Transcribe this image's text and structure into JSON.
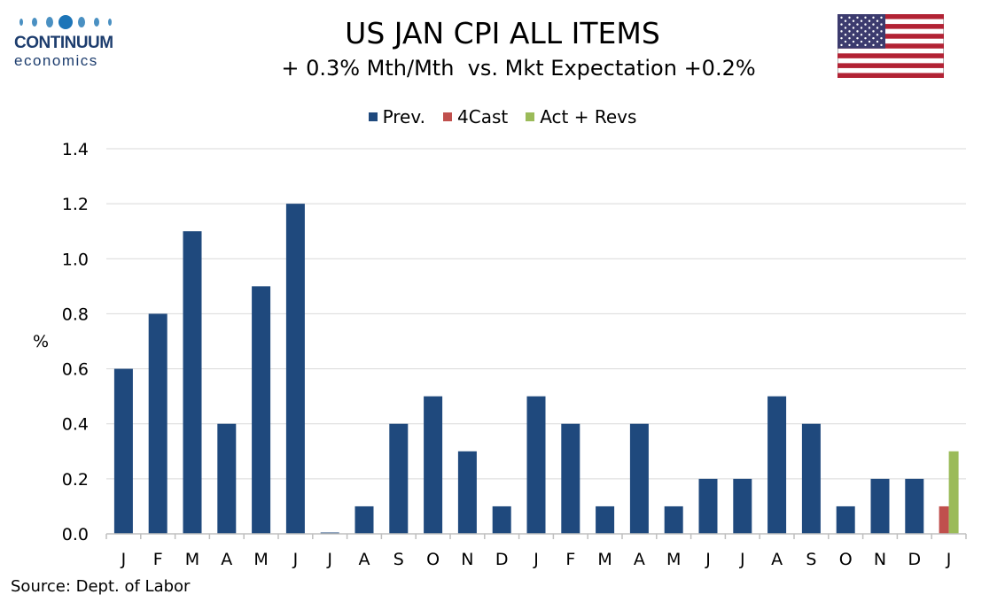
{
  "brand": {
    "name_line1": "CONTINUUM",
    "name_line2": "economics"
  },
  "header": {
    "title": "US JAN CPI ALL ITEMS",
    "subtitle": "+ 0.3% Mth/Mth  vs. Mkt Expectation +0.2%"
  },
  "flag": {
    "icon": "us-flag-icon",
    "colors": {
      "red": "#b22234",
      "white": "#ffffff",
      "blue": "#3c3b6e"
    }
  },
  "source": "Source: Dept. of Labor",
  "chart_data": {
    "type": "bar",
    "title": "US JAN CPI ALL ITEMS",
    "subtitle": "+ 0.3% Mth/Mth  vs. Mkt Expectation +0.2%",
    "ylabel": "%",
    "xlabel": "",
    "ylim": [
      0,
      1.4
    ],
    "yticks": [
      "0.0",
      "0.2",
      "0.4",
      "0.6",
      "0.8",
      "1.0",
      "1.2",
      "1.4"
    ],
    "grid": true,
    "legend_position": "top-center",
    "categories": [
      "J",
      "F",
      "M",
      "A",
      "M",
      "J",
      "J",
      "A",
      "S",
      "O",
      "N",
      "D",
      "J",
      "F",
      "M",
      "A",
      "M",
      "J",
      "J",
      "A",
      "S",
      "O",
      "N",
      "D",
      "J"
    ],
    "series": [
      {
        "name": "Prev.",
        "color": "#1f497d",
        "values": [
          0.6,
          0.8,
          1.1,
          0.4,
          0.9,
          1.2,
          0.0,
          0.1,
          0.4,
          0.5,
          0.3,
          0.1,
          0.5,
          0.4,
          0.1,
          0.4,
          0.1,
          0.2,
          0.2,
          0.5,
          0.4,
          0.1,
          0.2,
          0.2,
          null
        ]
      },
      {
        "name": "4Cast",
        "color": "#c0504d",
        "values": [
          null,
          null,
          null,
          null,
          null,
          null,
          null,
          null,
          null,
          null,
          null,
          null,
          null,
          null,
          null,
          null,
          null,
          null,
          null,
          null,
          null,
          null,
          null,
          null,
          0.1
        ]
      },
      {
        "name": "Act + Revs",
        "color": "#9bbb59",
        "values": [
          null,
          null,
          null,
          null,
          null,
          null,
          null,
          null,
          null,
          null,
          null,
          null,
          null,
          null,
          null,
          null,
          null,
          null,
          null,
          null,
          null,
          null,
          null,
          null,
          0.3
        ]
      }
    ]
  }
}
